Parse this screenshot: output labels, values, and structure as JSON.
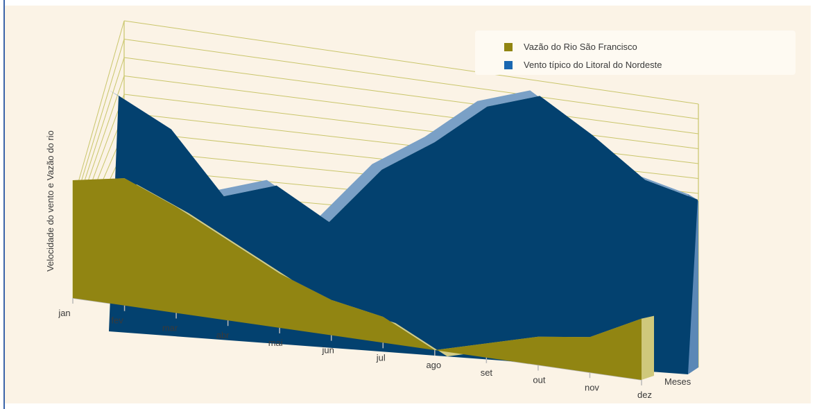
{
  "chart_data": {
    "type": "area",
    "categories": [
      "jan",
      "fev",
      "mar",
      "abr",
      "mai",
      "jun",
      "jul",
      "ago",
      "set",
      "out",
      "nov",
      "dez"
    ],
    "series": [
      {
        "name": "Vento típico do Litoral do Nordeste",
        "color": "#03416f",
        "values": [
          8.7,
          7.6,
          5.3,
          5.8,
          4.6,
          6.6,
          7.7,
          9.1,
          9.6,
          8.3,
          6.8,
          6.2
        ]
      },
      {
        "name": "Vazão do Rio São Francisco",
        "color": "#918512",
        "values": [
          5.0,
          5.4,
          4.5,
          3.4,
          2.3,
          1.5,
          1.1,
          0.0,
          0.6,
          1.2,
          1.5,
          2.6
        ]
      }
    ],
    "ylabel": "Velocidade do vento e Vazão do rio",
    "xlabel": "Meses",
    "grid": true,
    "legend_position": "top-right"
  }
}
